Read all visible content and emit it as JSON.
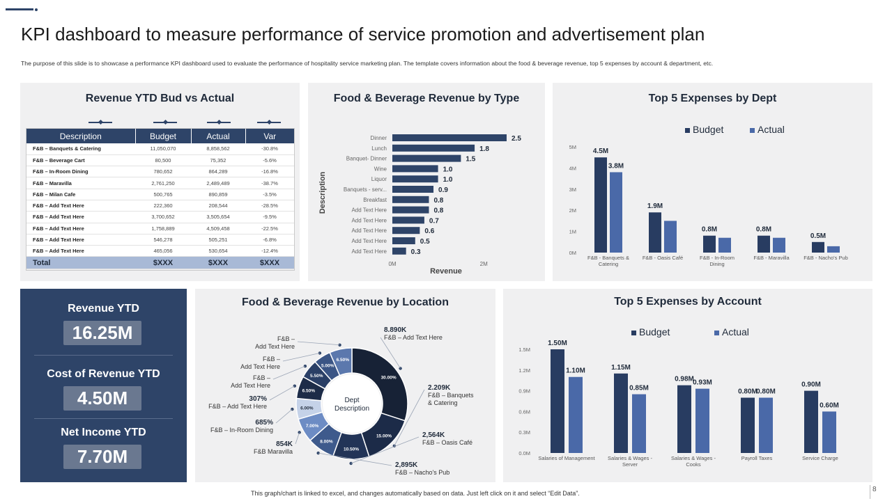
{
  "title": "KPI dashboard to measure performance of service promotion and advertisement plan",
  "subtitle": "The purpose of this slide is to showcase a performance KPI dashboard used to evaluate the performance of hospitality service marketing plan. The template covers information about the food & beverage revenue, top 5 expenses by account & department, etc.",
  "footer": "This graph/chart is linked to excel, and changes automatically based on data. Just left click on it and select “Edit Data”.",
  "page_number": "8",
  "budget_table": {
    "title": "Revenue YTD Bud vs Actual",
    "headers": [
      "Description",
      "Budget",
      "Actual",
      "Var"
    ],
    "rows": [
      [
        "F&B – Banquets & Catering",
        "11,050,070",
        "8,858,562",
        "-30.8%"
      ],
      [
        "F&B – Beverage Cart",
        "80,500",
        "75,352",
        "-5.6%"
      ],
      [
        "F&B – In-Room Dining",
        "780,652",
        "864,289",
        "-16.8%"
      ],
      [
        "F&B – Maravilla",
        "2,761,250",
        "2,489,489",
        "-38.7%"
      ],
      [
        "F&B – Milan Cafe",
        "500,765",
        "890,859",
        "-3.5%"
      ],
      [
        "F&B – Add Text Here",
        "222,360",
        "208,544",
        "-28.5%"
      ],
      [
        "F&B – Add Text Here",
        "3,700,652",
        "3,505,654",
        "-9.5%"
      ],
      [
        "F&B – Add Text Here",
        "1,758,889",
        "4,509,458",
        "-22.5%"
      ],
      [
        "F&B – Add Text Here",
        "546,278",
        "505,251",
        "-6.8%"
      ],
      [
        "F&B – Add Text Here",
        "465,056",
        "530,654",
        "-12.4%"
      ]
    ],
    "total": [
      "Total",
      "$XXX",
      "$XXX",
      "$XXX"
    ]
  },
  "kpis": {
    "revenue_label": "Revenue YTD",
    "revenue_value": "16.25M",
    "cost_label": "Cost of Revenue YTD",
    "cost_value": "4.50M",
    "net_label": "Net Income YTD",
    "net_value": "7.70M"
  },
  "colors": {
    "navy": "#2e4468",
    "budget": "#283c61",
    "actual": "#4a69a8",
    "panel": "#f0f0f1"
  },
  "chart_data": [
    {
      "type": "bar",
      "orientation": "horizontal",
      "title": "Food & Beverage Revenue by Type",
      "xlabel": "Revenue",
      "ylabel": "Description",
      "xlim": [
        0,
        2.5
      ],
      "xticks": [
        "0M",
        "2M"
      ],
      "categories": [
        "Dinner",
        "Lunch",
        "Banquet- Dinner",
        "Wine",
        "Liquor",
        "Banquets - serv...",
        "Breakfast",
        "Add Text Here",
        "Add Text Here",
        "Add Text Here",
        "Add Text Here",
        "Add Text Here"
      ],
      "values": [
        2.5,
        1.8,
        1.5,
        1.0,
        1.0,
        0.9,
        0.8,
        0.8,
        0.7,
        0.6,
        0.5,
        0.3
      ],
      "labels": [
        "2.5",
        "1.8",
        "1.5",
        "1.0",
        "1.0",
        "0.9",
        "0.8",
        "0.8",
        "0.7",
        "0.6",
        "0.5",
        "0.3"
      ]
    },
    {
      "type": "bar",
      "title": "Top 5 Expenses by Dept",
      "ylim": [
        0,
        5
      ],
      "yticks": [
        "0M",
        "1M",
        "2M",
        "3M",
        "4M",
        "5M"
      ],
      "legend": "top",
      "categories": [
        "F&B - Banquets & Catering",
        "F&B - Oasis Café",
        "F&B - In-Room Dining",
        "F&B - Maravilla",
        "F&B - Nacho's Pub"
      ],
      "series": [
        {
          "name": "Budget",
          "values": [
            4.5,
            1.9,
            0.8,
            0.8,
            0.5
          ],
          "labels": [
            "4.5M",
            "1.9M",
            "0.8M",
            "0.8M",
            "0.5M"
          ]
        },
        {
          "name": "Actual",
          "values": [
            3.8,
            1.5,
            0.7,
            0.7,
            0.3
          ],
          "labels": [
            "3.8M",
            "",
            "",
            "",
            ""
          ]
        }
      ]
    },
    {
      "type": "pie",
      "title": "Food & Beverage Revenue by Location",
      "center_label": "Dept Description",
      "slices": [
        {
          "pct": 30,
          "pct_label": "30.00%",
          "value": "8.890K",
          "name": "F&B – Add Text Here",
          "color": "#172236"
        },
        {
          "pct": 15,
          "pct_label": "15.00%",
          "value": "2.209K",
          "name": "F&B – Banquets & Catering",
          "color": "#1c2b48"
        },
        {
          "pct": 10.5,
          "pct_label": "10.50%",
          "value": "2,564K",
          "name": "F&B – Oasis Café",
          "color": "#223457"
        },
        {
          "pct": 8,
          "pct_label": "8.00%",
          "value": "2,895K",
          "name": "F&B – Nacho's Pub",
          "color": "#3e5a8c"
        },
        {
          "pct": 7,
          "pct_label": "7.00%",
          "value": "854K",
          "name": "F&B Maravilla",
          "color": "#6d8cc4"
        },
        {
          "pct": 6,
          "pct_label": "6.00%",
          "value": "685%",
          "name": "F&B – In-Room Dining",
          "color": "#c5d2e8"
        },
        {
          "pct": 6.5,
          "pct_label": "6.50%",
          "value": "307%",
          "name": "F&B – Add Text Here",
          "color": "#1d2c48"
        },
        {
          "pct": 5.5,
          "pct_label": "5.50%",
          "value": "",
          "name": "F&B – Add Text Here",
          "color": "#2a3f66"
        },
        {
          "pct": 5,
          "pct_label": "5.00%",
          "value": "",
          "name": "F&B – Add Text Here",
          "color": "#3b5585"
        },
        {
          "pct": 6.5,
          "pct_label": "6.50%",
          "value": "",
          "name": "F&B – Add Text Here",
          "color": "#5b78ad"
        }
      ]
    },
    {
      "type": "bar",
      "title": "Top 5 Expenses by Account",
      "ylim": [
        0,
        1.5
      ],
      "yticks": [
        "0.0M",
        "0.3M",
        "0.6M",
        "0.9M",
        "1.2M",
        "1.5M"
      ],
      "legend": "top",
      "categories": [
        "Salaries of Management",
        "Salaries & Wages - Server",
        "Salaries & Wages - Cooks",
        "Payroll Taxes",
        "Service Charge"
      ],
      "series": [
        {
          "name": "Budget",
          "values": [
            1.5,
            1.15,
            0.98,
            0.8,
            0.9
          ],
          "labels": [
            "1.50M",
            "1.15M",
            "0.98M",
            "0.80M",
            "0.90M"
          ]
        },
        {
          "name": "Actual",
          "values": [
            1.1,
            0.85,
            0.93,
            0.8,
            0.6
          ],
          "labels": [
            "1.10M",
            "0.85M",
            "0.93M",
            "0.80M",
            "0.60M"
          ]
        }
      ]
    }
  ]
}
